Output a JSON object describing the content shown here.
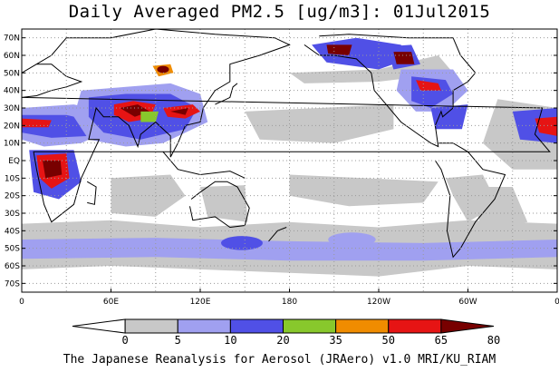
{
  "title": "Daily Averaged PM2.5 [ug/m3]: 01Jul2015",
  "footer": "The Japanese Reanalysis for Aerosol (JRAero) v1.0 MRI/KU_RIAM",
  "map": {
    "lat_labels": [
      "70N",
      "60N",
      "50N",
      "40N",
      "30N",
      "20N",
      "10N",
      "EQ",
      "10S",
      "20S",
      "30S",
      "40S",
      "50S",
      "60S",
      "70S"
    ],
    "lon_labels": [
      "0",
      "60E",
      "120E",
      "180",
      "120W",
      "60W",
      "0"
    ],
    "lat_range": [
      75,
      -75
    ],
    "lon_range": [
      0,
      360
    ],
    "colorbar": {
      "ticks": [
        "0",
        "5",
        "10",
        "20",
        "35",
        "50",
        "65",
        "80"
      ],
      "colors": [
        "#ffffff",
        "#c8c8c8",
        "#a0a0f0",
        "#5050e6",
        "#88c82c",
        "#f08c00",
        "#e61414",
        "#780000"
      ]
    },
    "colors": {
      "land": "#ffffff",
      "coast": "#000000",
      "grid": "#9a9a9a"
    }
  }
}
